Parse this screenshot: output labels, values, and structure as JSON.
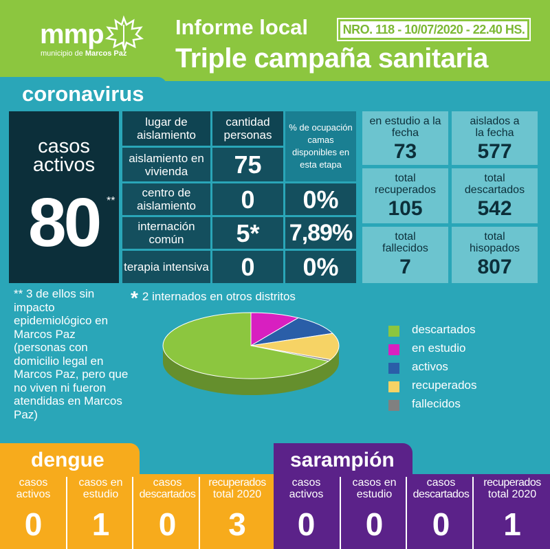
{
  "header": {
    "logo_text": "mmp",
    "logo_sub_prefix": "municipio de ",
    "logo_sub_bold": "Marcos Paz",
    "title_line1": "Informe local",
    "badge": "NRO. 118 - 10/07/2020 - 22.40 HS.",
    "title_line2": "Triple campaña sanitaria",
    "bg_color": "#8cc63f"
  },
  "coronavirus": {
    "section_title": "coronavirus",
    "casos_activos_label_1": "casos",
    "casos_activos_label_2": "activos",
    "casos_activos_value": "80",
    "casos_activos_mark": "**",
    "table": {
      "header_lugar": "lugar de aislamiento",
      "header_cantidad": "cantidad personas",
      "header_ocupacion": "% de ocupación camas disponibles en esta etapa",
      "rows": [
        {
          "lugar": "aislamiento en vivienda",
          "cantidad": "75",
          "ocupacion": ""
        },
        {
          "lugar": "centro de aislamiento",
          "cantidad": "0",
          "ocupacion": "0%"
        },
        {
          "lugar": "internación común",
          "cantidad": "5*",
          "ocupacion": "7,89%"
        },
        {
          "lugar": "terapia intensiva",
          "cantidad": "0",
          "ocupacion": "0%"
        }
      ]
    },
    "stats": [
      {
        "label": "en estudio a la fecha",
        "value": "73"
      },
      {
        "label": "aislados a la fecha",
        "value": "577"
      },
      {
        "label": "total recuperados",
        "value": "105"
      },
      {
        "label": "total descartados",
        "value": "542"
      },
      {
        "label": "total fallecidos",
        "value": "7"
      },
      {
        "label": "total hisopados",
        "value": "807"
      }
    ],
    "note_double": "** 3 de ellos sin impacto epidemiológico en Marcos Paz (personas con domicilio legal en Marcos Paz, pero que no viven ni fueron atendidas en Marcos Paz)",
    "note_single_mark": "*",
    "note_single": "2 internados en otros distritos",
    "legend": [
      {
        "label": "descartados",
        "color": "#8cc63f"
      },
      {
        "label": "en estudio",
        "color": "#d81fc0"
      },
      {
        "label": "activos",
        "color": "#2a5ea8"
      },
      {
        "label": "recuperados",
        "color": "#f6d365"
      },
      {
        "label": "fallecidos",
        "color": "#808080"
      }
    ]
  },
  "chart_data": {
    "type": "pie",
    "categories": [
      "descartados",
      "en estudio",
      "activos",
      "recuperados",
      "fallecidos"
    ],
    "values": [
      542,
      73,
      80,
      105,
      7
    ],
    "colors": [
      "#8cc63f",
      "#d81fc0",
      "#2a5ea8",
      "#f6d365",
      "#808080"
    ],
    "legend": "right"
  },
  "dengue": {
    "title": "dengue",
    "columns": [
      {
        "label_1": "casos",
        "label_2": "activos",
        "value": "0"
      },
      {
        "label_1": "casos en",
        "label_2": "estudio",
        "value": "1"
      },
      {
        "label_1": "casos",
        "label_2": "descartados",
        "value": "0"
      },
      {
        "label_1": "recuperados",
        "label_2": "total 2020",
        "value": "3"
      }
    ]
  },
  "sarampion": {
    "title": "sarampión",
    "columns": [
      {
        "label_1": "casos",
        "label_2": "activos",
        "value": "0"
      },
      {
        "label_1": "casos en",
        "label_2": "estudio",
        "value": "0"
      },
      {
        "label_1": "casos",
        "label_2": "descartados",
        "value": "0"
      },
      {
        "label_1": "recuperados",
        "label_2": "total 2020",
        "value": "1"
      }
    ]
  }
}
